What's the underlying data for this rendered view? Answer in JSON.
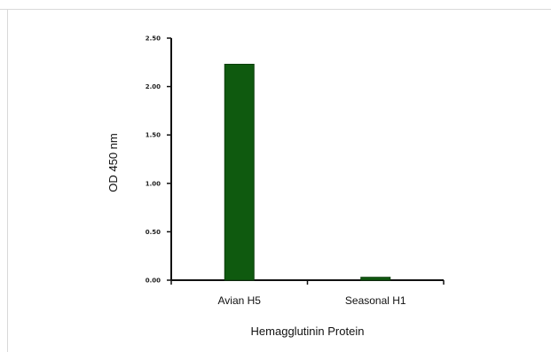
{
  "chart_data": {
    "type": "bar",
    "categories": [
      "Avian H5",
      "Seasonal H1"
    ],
    "values": [
      2.23,
      0.03
    ],
    "xlabel": "Hemagglutinin Protein",
    "ylabel": "OD 450 nm",
    "ylim": [
      0,
      2.5
    ],
    "yticks": [
      0,
      0.5,
      1.0,
      1.5,
      2.0,
      2.5
    ],
    "ytick_labels": [
      "0.00",
      "0.50",
      "1.00",
      "1.50",
      "2.00",
      "2.50"
    ],
    "bar_color": "#0f5a0f",
    "grid": false
  }
}
